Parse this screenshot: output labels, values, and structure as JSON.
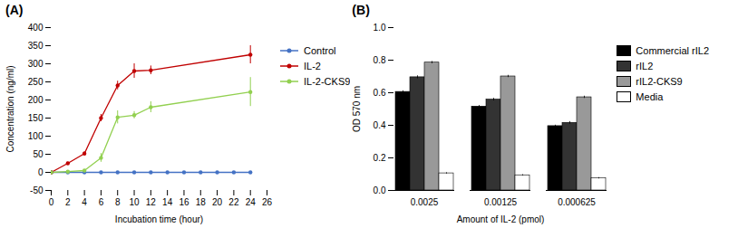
{
  "chart_data": [
    {
      "type": "line",
      "title": "(A)",
      "xlabel": "Incubation time (hour)",
      "ylabel": "Concentration (ng/ml)",
      "xlim": [
        0,
        26
      ],
      "ylim": [
        -50,
        400
      ],
      "xticks": [
        0,
        2,
        4,
        6,
        8,
        10,
        12,
        14,
        16,
        18,
        20,
        22,
        24,
        26
      ],
      "yticks": [
        -50,
        0,
        50,
        100,
        150,
        200,
        250,
        300,
        350,
        400
      ],
      "marker": "circle",
      "legend": "right",
      "series": [
        {
          "name": "Control",
          "color": "#4472c4",
          "x": [
            0,
            2,
            4,
            6,
            8,
            10,
            12,
            14,
            16,
            18,
            20,
            22,
            24
          ],
          "values": [
            0,
            0,
            0,
            0,
            0,
            0,
            0,
            0,
            0,
            0,
            0,
            0,
            0
          ],
          "yerr": [
            0.5,
            0.5,
            0.5,
            0.5,
            0.5,
            0.5,
            0.5,
            0.5,
            0.5,
            0.5,
            0.5,
            0.5,
            0.5
          ]
        },
        {
          "name": "IL-2",
          "color": "#c00000",
          "x": [
            0,
            2,
            4,
            6,
            8,
            10,
            12,
            24
          ],
          "values": [
            0,
            25,
            52,
            150,
            240,
            280,
            282,
            325
          ],
          "yerr": [
            1,
            3,
            5,
            10,
            12,
            20,
            12,
            25
          ]
        },
        {
          "name": "IL-2-CKS9",
          "color": "#92d050",
          "x": [
            0,
            2,
            4,
            6,
            8,
            10,
            12,
            24
          ],
          "values": [
            0,
            2,
            5,
            40,
            152,
            158,
            180,
            222
          ],
          "yerr": [
            1,
            1,
            2,
            12,
            18,
            10,
            15,
            40
          ]
        }
      ]
    },
    {
      "type": "bar",
      "title": "(B)",
      "xlabel": "Amount of IL-2 (pmol)",
      "ylabel": "OD 570 nm",
      "categories": [
        "0.0025",
        "0.00125",
        "0.000625"
      ],
      "ylim": [
        0,
        1.0
      ],
      "yticks": [
        {
          "value": 0,
          "label": "0.0"
        },
        0.2,
        0.4,
        0.6,
        0.8,
        {
          "value": 1,
          "label": "1.0"
        }
      ],
      "legend": "right",
      "series": [
        {
          "name": "Commercial rIL2",
          "color": "#000000",
          "values": [
            0.605,
            0.515,
            0.395
          ],
          "yerr": [
            0.007,
            0.007,
            0.006
          ]
        },
        {
          "name": "rIL2",
          "color": "#333333",
          "values": [
            0.695,
            0.558,
            0.415
          ],
          "yerr": [
            0.009,
            0.008,
            0.008
          ]
        },
        {
          "name": "rIL2-CKS9",
          "color": "#999999",
          "values": [
            0.785,
            0.7,
            0.572
          ],
          "yerr": [
            0.007,
            0.007,
            0.007
          ]
        },
        {
          "name": "Media",
          "color": "#ffffff",
          "values": [
            0.105,
            0.093,
            0.075
          ],
          "yerr": [
            0.004,
            0.004,
            0.004
          ]
        }
      ]
    }
  ]
}
